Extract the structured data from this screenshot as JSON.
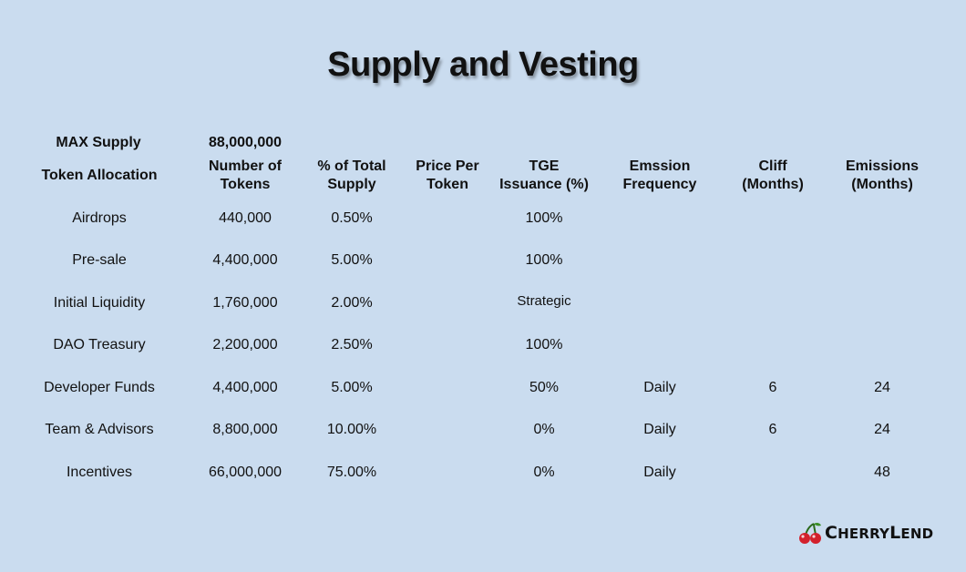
{
  "title": "Supply and Vesting",
  "max_supply": {
    "label": "MAX Supply",
    "value": "88,000,000"
  },
  "headers": [
    [
      "Token Allocation"
    ],
    [
      "Number of",
      "Tokens"
    ],
    [
      "% of Total",
      "Supply"
    ],
    [
      "Price Per",
      "Token"
    ],
    [
      "TGE",
      "Issuance (%)"
    ],
    [
      "Emssion",
      "Frequency"
    ],
    [
      "Cliff",
      "(Months)"
    ],
    [
      "Emissions",
      "(Months)"
    ]
  ],
  "rows": [
    [
      "Airdrops",
      "440,000",
      "0.50%",
      "",
      "100%",
      "",
      "",
      ""
    ],
    [
      "Pre-sale",
      "4,400,000",
      "5.00%",
      "",
      "100%",
      "",
      "",
      ""
    ],
    [
      "Initial Liquidity",
      "1,760,000",
      "2.00%",
      "",
      "Strategic",
      "",
      "",
      ""
    ],
    [
      "DAO Treasury",
      "2,200,000",
      "2.50%",
      "",
      "100%",
      "",
      "",
      ""
    ],
    [
      "Developer Funds",
      "4,400,000",
      "5.00%",
      "",
      "50%",
      "Daily",
      "6",
      "24"
    ],
    [
      "Team & Advisors",
      "8,800,000",
      "10.00%",
      "",
      "0%",
      "Daily",
      "6",
      "24"
    ],
    [
      "Incentives",
      "66,000,000",
      "75.00%",
      "",
      "0%",
      "Daily",
      "",
      "48"
    ]
  ],
  "logo": {
    "first": "C",
    "rest1": "HERRY",
    "second": "L",
    "rest2": "END",
    "icon": "cherry-icon"
  }
}
